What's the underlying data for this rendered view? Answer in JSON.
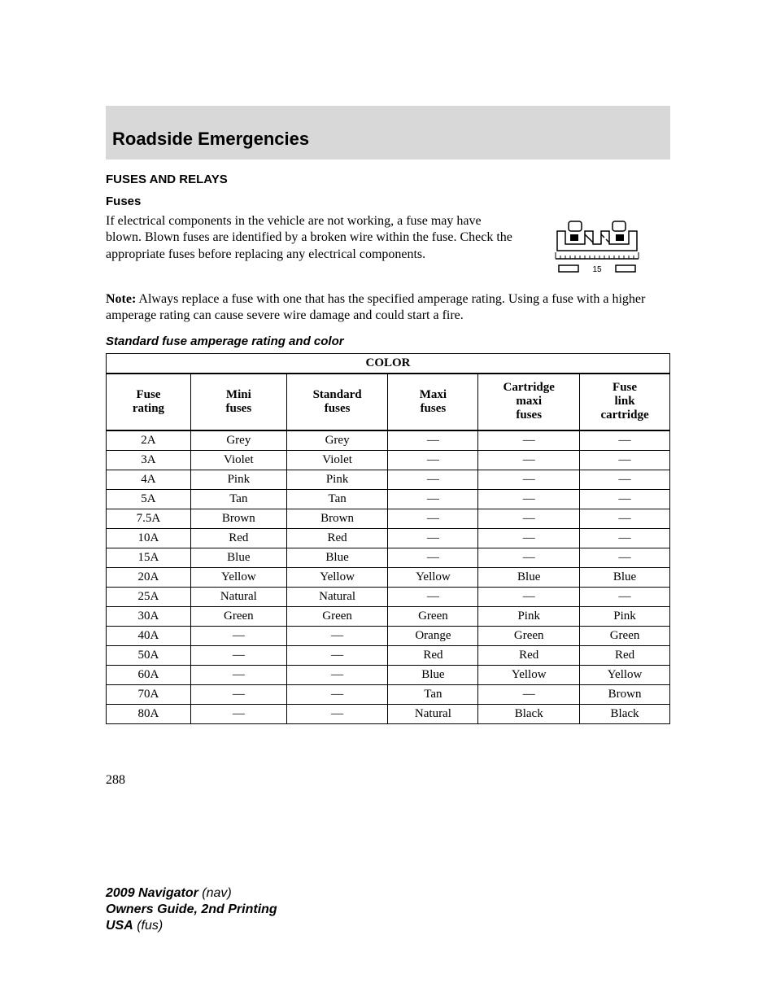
{
  "section_header": "Roadside Emergencies",
  "sub_header_caps": "FUSES AND RELAYS",
  "sub_header_small": "Fuses",
  "body_paragraph": "If electrical components in the vehicle are not working, a fuse may have blown. Blown fuses are identified by a broken wire within the fuse. Check the appropriate fuses before replacing any electrical components.",
  "note_label": "Note:",
  "note_text": " Always replace a fuse with one that has the specified amperage rating. Using a fuse with a higher amperage rating can cause severe wire damage and could start a fire.",
  "table_title": "Standard fuse amperage rating and color",
  "fuse_diagram": {
    "label_15": "15"
  },
  "fuse_table": {
    "super_header": "COLOR",
    "columns": [
      "Fuse rating",
      "Mini fuses",
      "Standard fuses",
      "Maxi fuses",
      "Cartridge maxi fuses",
      "Fuse link cartridge"
    ],
    "column_widths_pct": [
      15,
      17,
      18,
      16,
      18,
      16
    ],
    "rows": [
      [
        "2A",
        "Grey",
        "Grey",
        "—",
        "—",
        "—"
      ],
      [
        "3A",
        "Violet",
        "Violet",
        "—",
        "—",
        "—"
      ],
      [
        "4A",
        "Pink",
        "Pink",
        "—",
        "—",
        "—"
      ],
      [
        "5A",
        "Tan",
        "Tan",
        "—",
        "—",
        "—"
      ],
      [
        "7.5A",
        "Brown",
        "Brown",
        "—",
        "—",
        "—"
      ],
      [
        "10A",
        "Red",
        "Red",
        "—",
        "—",
        "—"
      ],
      [
        "15A",
        "Blue",
        "Blue",
        "—",
        "—",
        "—"
      ],
      [
        "20A",
        "Yellow",
        "Yellow",
        "Yellow",
        "Blue",
        "Blue"
      ],
      [
        "25A",
        "Natural",
        "Natural",
        "—",
        "—",
        "—"
      ],
      [
        "30A",
        "Green",
        "Green",
        "Green",
        "Pink",
        "Pink"
      ],
      [
        "40A",
        "—",
        "—",
        "Orange",
        "Green",
        "Green"
      ],
      [
        "50A",
        "—",
        "—",
        "Red",
        "Red",
        "Red"
      ],
      [
        "60A",
        "—",
        "—",
        "Blue",
        "Yellow",
        "Yellow"
      ],
      [
        "70A",
        "—",
        "—",
        "Tan",
        "—",
        "Brown"
      ],
      [
        "80A",
        "—",
        "—",
        "Natural",
        "Black",
        "Black"
      ]
    ]
  },
  "page_number": "288",
  "footer": {
    "line1_bold": "2009 Navigator",
    "line1_rest": " (nav)",
    "line2": "Owners Guide, 2nd Printing",
    "line3_bold": "USA",
    "line3_rest": " (fus)"
  },
  "colors": {
    "header_bg": "#d8d8d8",
    "text": "#000000",
    "border": "#000000",
    "background": "#ffffff"
  },
  "typography": {
    "section_header_fontsize": 22,
    "body_fontsize": 16,
    "table_fontsize": 15
  }
}
